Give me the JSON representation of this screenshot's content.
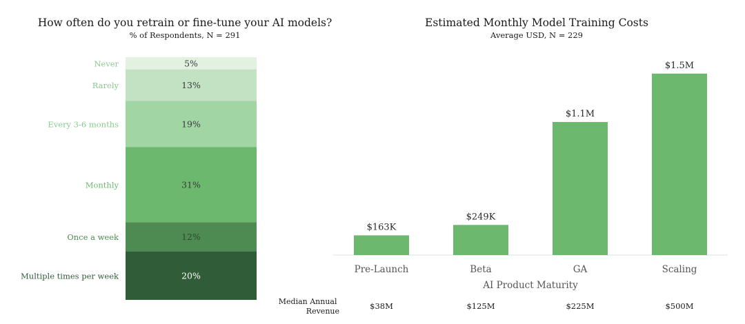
{
  "chart_data": [
    {
      "type": "bar",
      "layout": "stacked-100",
      "title": "How often do you retrain or fine-tune your AI models?",
      "subtitle": "% of Respondents, N = 291",
      "categories": [
        "Never",
        "Rarely",
        "Every 3-6 months",
        "Monthly",
        "Once a week",
        "Multiple times per week"
      ],
      "values": [
        5,
        13,
        19,
        31,
        12,
        20
      ],
      "value_labels": [
        "5%",
        "13%",
        "19%",
        "31%",
        "12%",
        "20%"
      ],
      "colors": [
        "#e2f1e0",
        "#c3e2c3",
        "#a2d5a4",
        "#6cb86f",
        "#4d8b52",
        "#305c37"
      ],
      "label_colors": [
        "#8dc98f",
        "#8dc98f",
        "#8dc98f",
        "#6cb86f",
        "#4d8b52",
        "#305c37"
      ],
      "value_label_colors": [
        "#3a3a3a",
        "#3a3a3a",
        "#3a3a3a",
        "#3a3a3a",
        "#2e4a31",
        "#ffffff"
      ]
    },
    {
      "type": "bar",
      "title": "Estimated Monthly Model Training Costs",
      "subtitle": "Average USD, N = 229",
      "xlabel": "AI Product Maturity",
      "ylabel": "",
      "categories": [
        "Pre-Launch",
        "Beta",
        "GA",
        "Scaling"
      ],
      "values": [
        163000,
        249000,
        1100000,
        1500000
      ],
      "value_labels": [
        "$163K",
        "$249K",
        "$1.1M",
        "$1.5M"
      ],
      "bar_color": "#6cb86f",
      "ylim": [
        0,
        1550000
      ],
      "grid": false,
      "footer_row": {
        "label": [
          "Median Annual",
          "Revenue"
        ],
        "values": [
          "$38M",
          "$125M",
          "$225M",
          "$500M"
        ]
      }
    }
  ]
}
